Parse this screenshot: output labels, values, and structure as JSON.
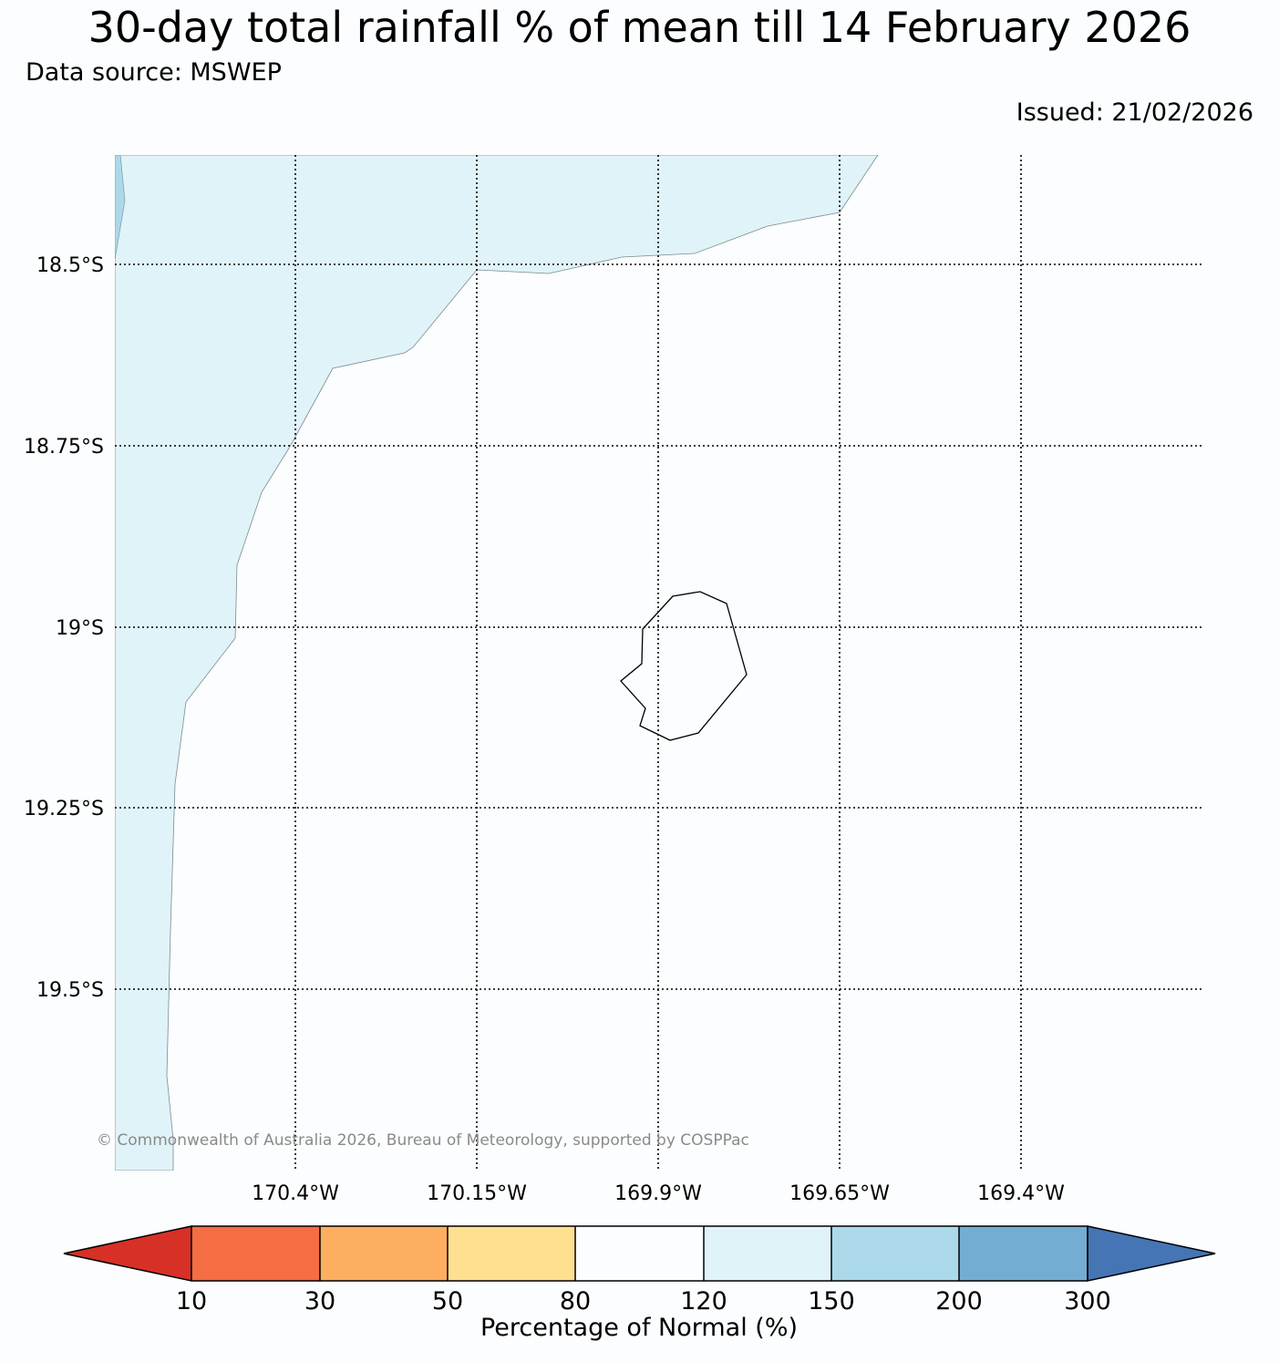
{
  "title": "30-day total rainfall % of mean till 14 February 2026",
  "data_source": "Data source: MSWEP",
  "issued": "Issued: 21/02/2026",
  "copyright": "© Commonwealth of Australia 2026, Bureau of Meteorology, supported by COSPPac",
  "axes": {
    "lat_labels": [
      "18.5°S",
      "18.75°S",
      "19°S",
      "19.25°S",
      "19.5°S"
    ],
    "lon_labels": [
      "170.4°W",
      "170.15°W",
      "169.9°W",
      "169.65°W",
      "169.4°W"
    ]
  },
  "colorbar": {
    "title": "Percentage of Normal (%)",
    "ticks": [
      "10",
      "30",
      "50",
      "80",
      "120",
      "150",
      "200",
      "300"
    ],
    "colors": [
      "#d73027",
      "#f46d43",
      "#fdae61",
      "#fee090",
      "#fbfdfe",
      "#e0f3f8",
      "#abd9e9",
      "#74add1",
      "#4575b4"
    ]
  },
  "regions": {
    "wet_150_200": "#e0f3f8",
    "wet_200_300": "#abd9e9",
    "normal": "#fbfdfe"
  }
}
